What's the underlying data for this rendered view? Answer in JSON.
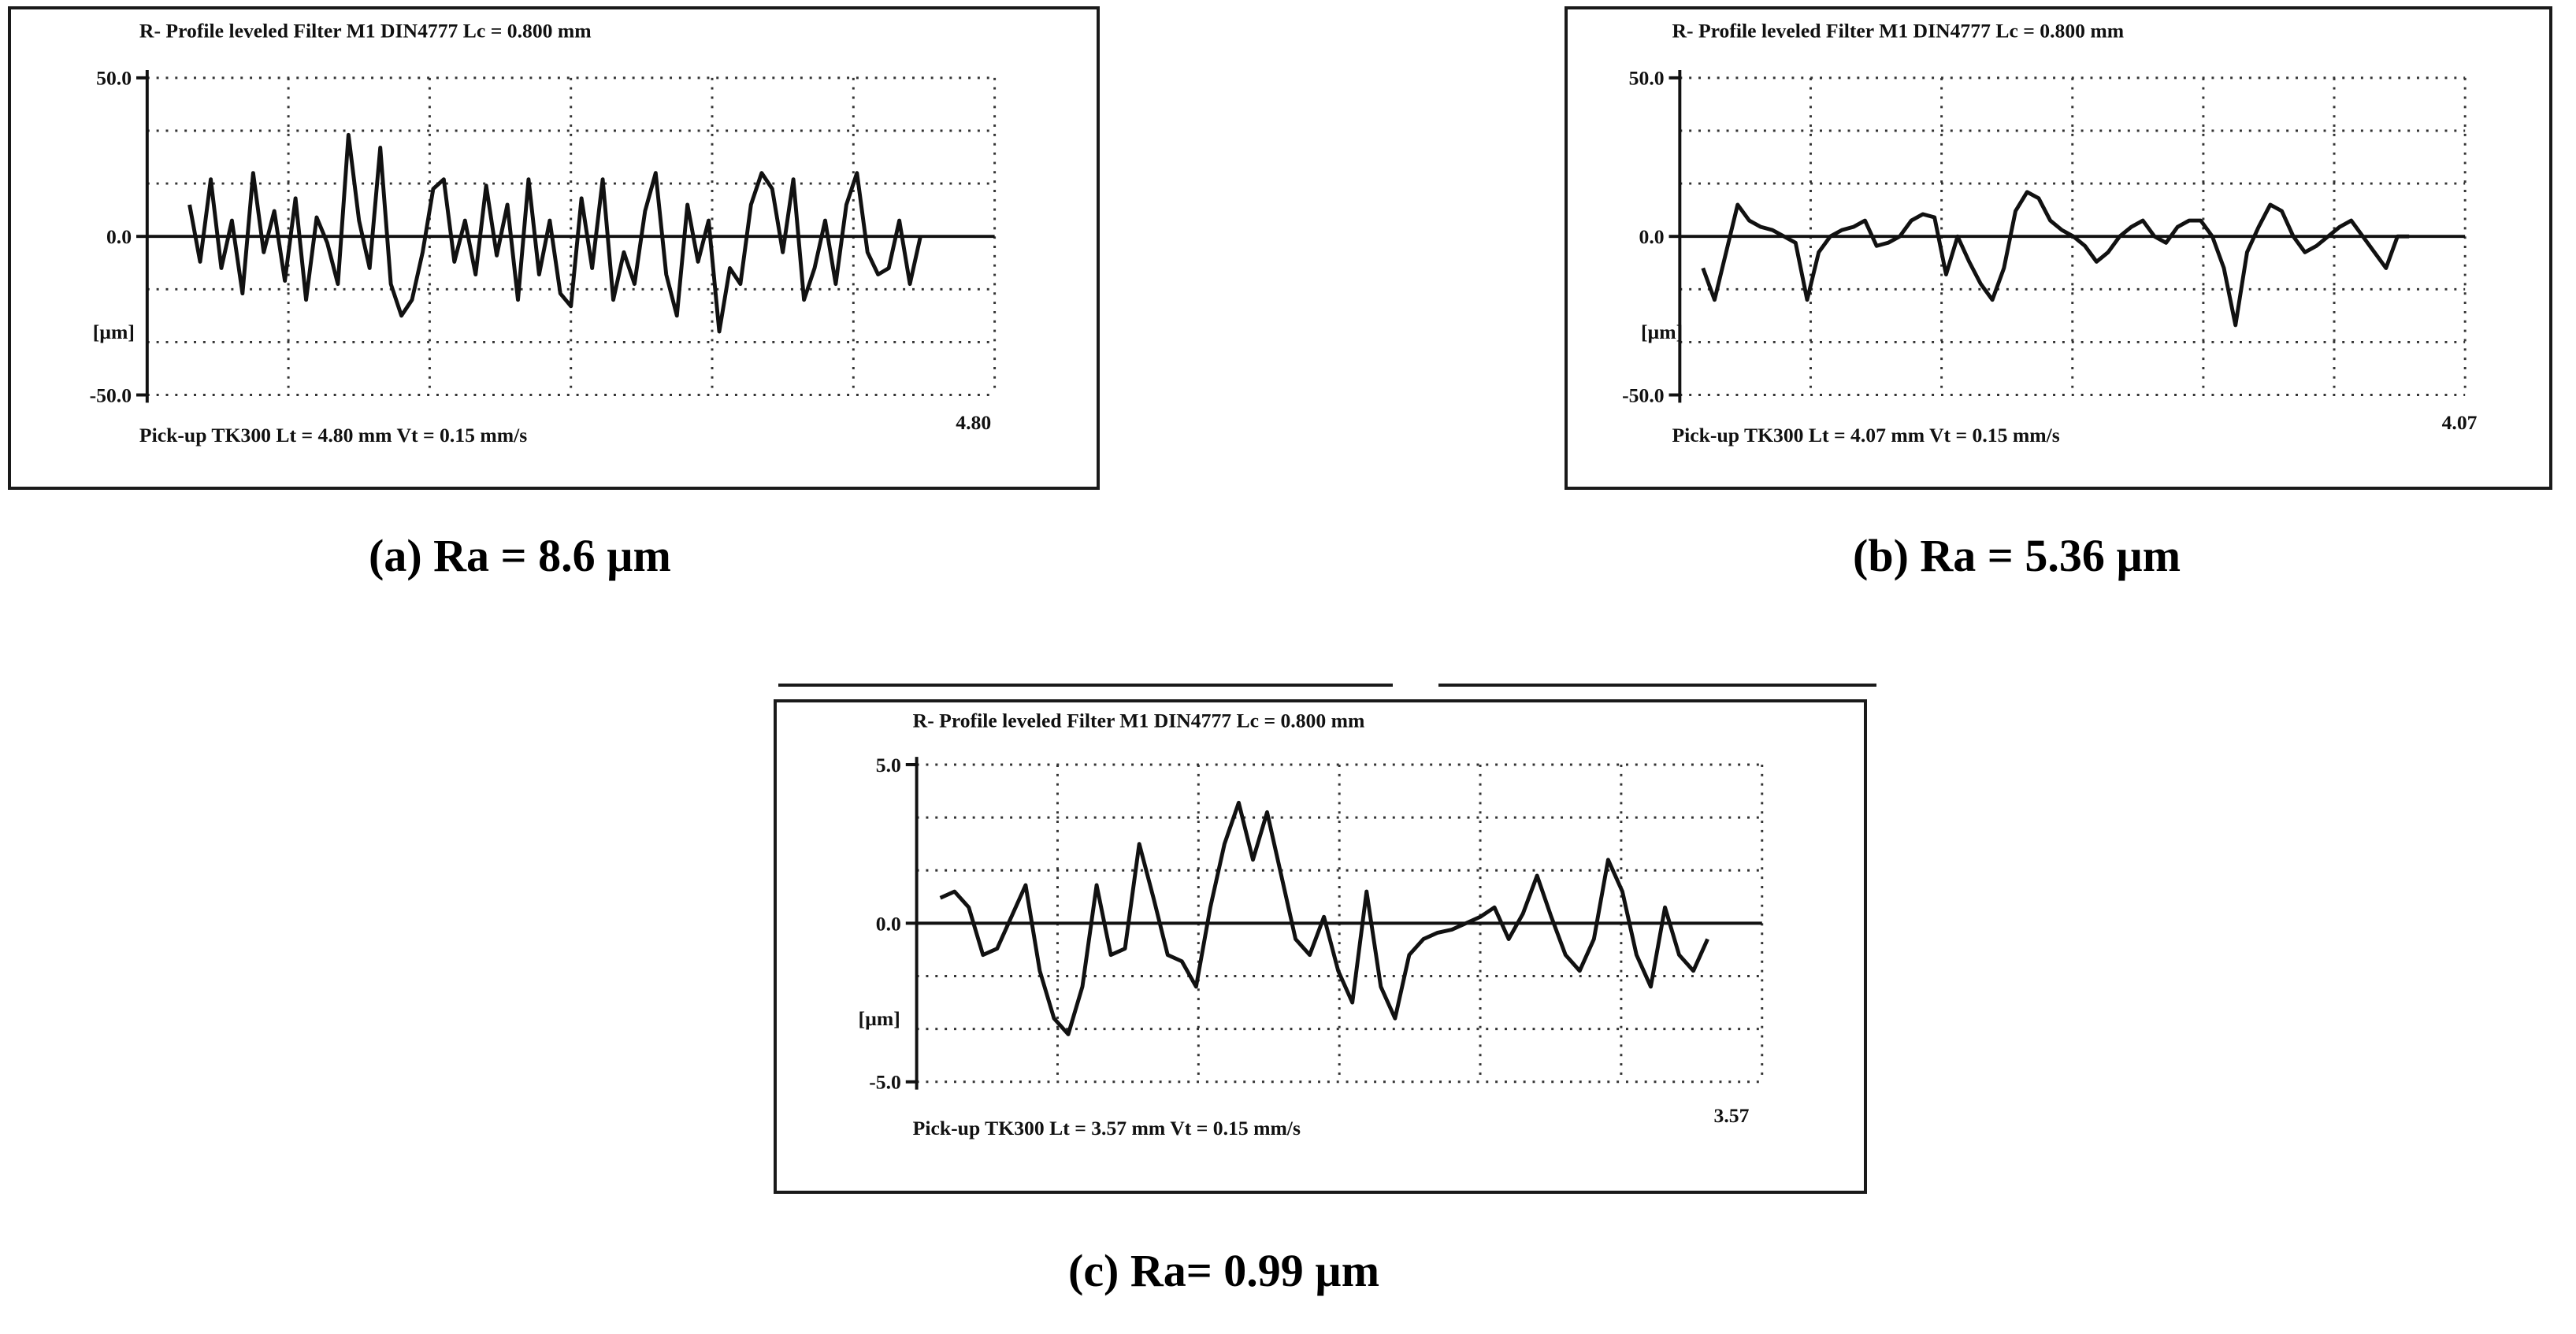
{
  "chart_data": [
    {
      "type": "line",
      "header": "R-  Profile leveled   Filter  M1  DIN4777       Lc = 0.800  mm",
      "footer": "Pick-up TK300     Lt = 4.80  mm     Vt = 0.15  mm/s",
      "x_end_label": "4.80",
      "y_ticks": [
        "50.0",
        "0.0",
        "-50.0"
      ],
      "ylabel": "[µm]",
      "ylim": [
        -50,
        50
      ],
      "xlim": [
        0,
        4.8
      ],
      "grid": true,
      "caption": "(a) Ra = 8.6 µm",
      "series": [
        {
          "x": [
            0.24,
            0.3,
            0.36,
            0.42,
            0.48,
            0.54,
            0.6,
            0.66,
            0.72,
            0.78,
            0.84,
            0.9,
            0.96,
            1.02,
            1.08,
            1.14,
            1.2,
            1.26,
            1.32,
            1.38,
            1.44,
            1.5,
            1.56,
            1.62,
            1.68,
            1.74,
            1.8,
            1.86,
            1.92,
            1.98,
            2.04,
            2.1,
            2.16,
            2.22,
            2.28,
            2.34,
            2.4,
            2.46,
            2.52,
            2.58,
            2.64,
            2.7,
            2.76,
            2.82,
            2.88,
            2.94,
            3.0,
            3.06,
            3.12,
            3.18,
            3.24,
            3.3,
            3.36,
            3.42,
            3.48,
            3.54,
            3.6,
            3.66,
            3.72,
            3.78,
            3.84,
            3.9,
            3.96,
            4.02,
            4.08,
            4.14,
            4.2,
            4.26,
            4.32,
            4.38
          ],
          "y": [
            10,
            -8,
            18,
            -10,
            5,
            -18,
            20,
            -5,
            8,
            -14,
            12,
            -20,
            6,
            -2,
            -15,
            32,
            5,
            -10,
            28,
            -15,
            -25,
            -20,
            -5,
            15,
            18,
            -8,
            5,
            -12,
            16,
            -6,
            10,
            -20,
            18,
            -12,
            5,
            -18,
            -22,
            12,
            -10,
            18,
            -20,
            -5,
            -15,
            8,
            20,
            -12,
            -25,
            10,
            -8,
            5,
            -30,
            -10,
            -15,
            10,
            20,
            15,
            -5,
            18,
            -20,
            -10,
            5,
            -15,
            10,
            20,
            -5,
            -12,
            -10,
            5,
            -15,
            0
          ]
        }
      ]
    },
    {
      "type": "line",
      "header": "R-  Profile leveled   Filter  M1  DIN4777       Lc = 0.800  mm",
      "footer": "Pick-up TK300     Lt = 4.07  mm     Vt = 0.15  mm/s",
      "x_end_label": "4.07",
      "y_ticks": [
        "50.0",
        "0.0",
        "-50.0"
      ],
      "ylabel": "[µm]",
      "ylim": [
        -50,
        50
      ],
      "xlim": [
        0,
        4.07
      ],
      "grid": true,
      "caption": "(b) Ra =  5.36 µm",
      "series": [
        {
          "x": [
            0.12,
            0.18,
            0.24,
            0.3,
            0.36,
            0.42,
            0.48,
            0.54,
            0.6,
            0.66,
            0.72,
            0.78,
            0.84,
            0.9,
            0.96,
            1.02,
            1.08,
            1.14,
            1.2,
            1.26,
            1.32,
            1.38,
            1.44,
            1.5,
            1.56,
            1.62,
            1.68,
            1.74,
            1.8,
            1.86,
            1.92,
            1.98,
            2.04,
            2.1,
            2.16,
            2.22,
            2.28,
            2.34,
            2.4,
            2.46,
            2.52,
            2.58,
            2.64,
            2.7,
            2.76,
            2.82,
            2.88,
            2.94,
            3.0,
            3.06,
            3.12,
            3.18,
            3.24,
            3.3,
            3.36,
            3.42,
            3.48,
            3.54,
            3.6,
            3.66,
            3.72,
            3.78
          ],
          "y": [
            -10,
            -20,
            -5,
            10,
            5,
            3,
            2,
            0,
            -2,
            -20,
            -5,
            0,
            2,
            3,
            5,
            -3,
            -2,
            0,
            5,
            7,
            6,
            -12,
            0,
            -8,
            -15,
            -20,
            -10,
            8,
            14,
            12,
            5,
            2,
            0,
            -3,
            -8,
            -5,
            0,
            3,
            5,
            0,
            -2,
            3,
            5,
            5,
            0,
            -10,
            -28,
            -5,
            3,
            10,
            8,
            0,
            -5,
            -3,
            0,
            3,
            5,
            0,
            -5,
            -10,
            0,
            0
          ]
        }
      ]
    },
    {
      "type": "line",
      "header": "R-  Profile leveled   Filter  M1  DIN4777       Lc = 0.800  mm",
      "footer": "Pick-up TK300     Lt = 3.57  mm     Vt = 0.15  mm/s",
      "x_end_label": "3.57",
      "y_ticks": [
        "5.0",
        "0.0",
        "-5.0"
      ],
      "ylabel": "[µm]",
      "ylim": [
        -5,
        5
      ],
      "xlim": [
        0,
        3.57
      ],
      "grid": true,
      "caption": "(c) Ra= 0.99 µm",
      "series": [
        {
          "x": [
            0.1,
            0.16,
            0.22,
            0.28,
            0.34,
            0.4,
            0.46,
            0.52,
            0.58,
            0.64,
            0.7,
            0.76,
            0.82,
            0.88,
            0.94,
            1.0,
            1.06,
            1.12,
            1.18,
            1.24,
            1.3,
            1.36,
            1.42,
            1.48,
            1.54,
            1.6,
            1.66,
            1.72,
            1.78,
            1.84,
            1.9,
            1.96,
            2.02,
            2.08,
            2.14,
            2.2,
            2.26,
            2.32,
            2.38,
            2.44,
            2.5,
            2.56,
            2.62,
            2.68,
            2.74,
            2.8,
            2.86,
            2.92,
            2.98,
            3.04,
            3.1,
            3.16,
            3.22,
            3.28,
            3.34
          ],
          "y": [
            0.8,
            1.0,
            0.5,
            -1.0,
            -0.8,
            0.2,
            1.2,
            -1.5,
            -3.0,
            -3.5,
            -2.0,
            1.2,
            -1.0,
            -0.8,
            2.5,
            0.8,
            -1.0,
            -1.2,
            -2.0,
            0.5,
            2.5,
            3.8,
            2.0,
            3.5,
            1.5,
            -0.5,
            -1.0,
            0.2,
            -1.5,
            -2.5,
            1.0,
            -2.0,
            -3.0,
            -1.0,
            -0.5,
            -0.3,
            -0.2,
            0.0,
            0.2,
            0.5,
            -0.5,
            0.3,
            1.5,
            0.2,
            -1.0,
            -1.5,
            -0.5,
            2.0,
            1.0,
            -1.0,
            -2.0,
            0.5,
            -1.0,
            -1.5,
            -0.5
          ]
        }
      ]
    }
  ]
}
